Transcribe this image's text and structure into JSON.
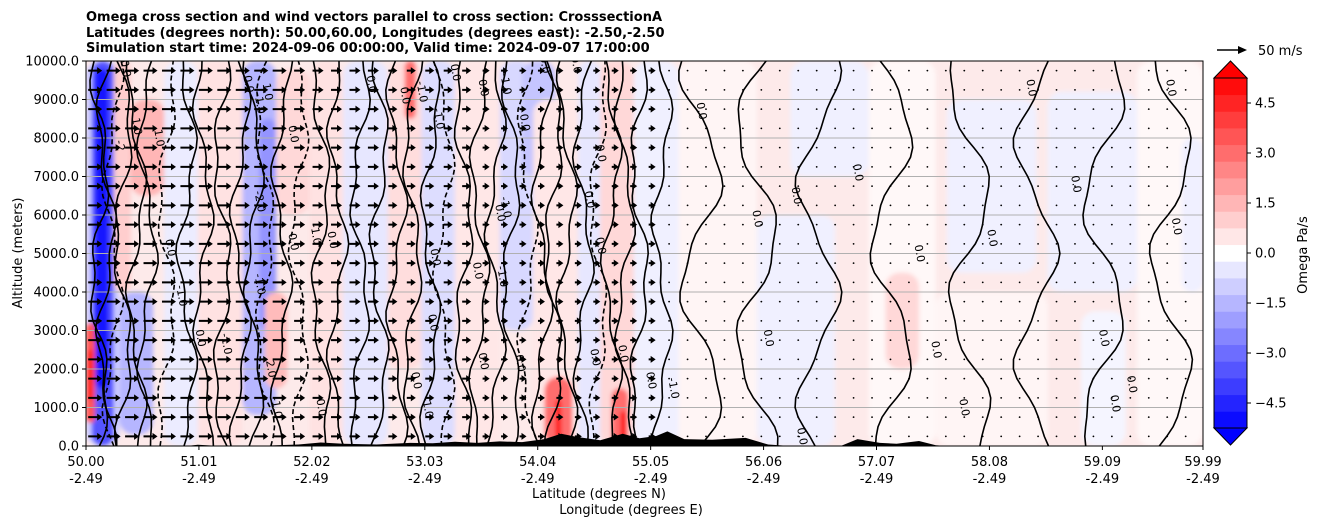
{
  "title_lines": [
    "Omega cross section and wind vectors parallel to cross section: CrosssectionA",
    "Latitudes (degrees north): 50.00,60.00, Longitudes (degrees east): -2.50,-2.50",
    "Simulation start time: 2024-09-06 00:00:00, Valid time: 2024-09-07 17:00:00"
  ],
  "quiver_key_label": "50 m/s",
  "colorbar_label": "Omega Pa/s",
  "colorbar_ticks": [
    "4.5",
    "3.0",
    "1.5",
    "0.0",
    "−1.5",
    "−3.0",
    "−4.5"
  ],
  "colors": {
    "positive": "#ff0000",
    "negative": "#0000ff",
    "terrain": "#000000",
    "grid": "#b0b0b0"
  },
  "chart_data": {
    "type": "contourf",
    "ylabel": "Altitude (meters)",
    "xlabel_lat": "Latitude (degrees N)",
    "xlabel_lon": "Longitude (degrees E)",
    "ylim": [
      0,
      10000
    ],
    "xlim": [
      50.0,
      59.99
    ],
    "y_ticks": [
      0,
      1000,
      2000,
      3000,
      4000,
      5000,
      6000,
      7000,
      8000,
      9000,
      10000
    ],
    "y_tick_labels": [
      "0.0",
      "1000.0",
      "2000.0",
      "3000.0",
      "4000.0",
      "5000.0",
      "6000.0",
      "7000.0",
      "8000.0",
      "9000.0",
      "10000.0"
    ],
    "x_ticks": [
      50.0,
      51.01,
      52.02,
      53.03,
      54.04,
      55.05,
      56.06,
      57.07,
      58.08,
      59.09,
      59.99
    ],
    "x_tick_lat_labels": [
      "50.00",
      "51.01",
      "52.02",
      "53.03",
      "54.04",
      "55.05",
      "56.06",
      "57.07",
      "58.08",
      "59.09",
      "59.99"
    ],
    "x_tick_lon_labels": [
      "-2.49",
      "-2.49",
      "-2.49",
      "-2.49",
      "-2.49",
      "-2.49",
      "-2.49",
      "-2.49",
      "-2.49",
      "-2.49",
      "-2.49"
    ],
    "grid": "horizontal",
    "colorbar": {
      "vmin": -5.25,
      "vmax": 5.25,
      "step": 0.5
    },
    "contour_labels": [
      {
        "lat": 50.35,
        "alt": 9800,
        "text": "0.0"
      },
      {
        "lat": 50.45,
        "alt": 8300,
        "text": "1.0"
      },
      {
        "lat": 50.3,
        "alt": 7800,
        "text": "-2"
      },
      {
        "lat": 50.65,
        "alt": 8000,
        "text": "1.0"
      },
      {
        "lat": 50.75,
        "alt": 5150,
        "text": "0.0"
      },
      {
        "lat": 50.85,
        "alt": 3900,
        "text": "-1.0"
      },
      {
        "lat": 51.02,
        "alt": 2800,
        "text": "0.0"
      },
      {
        "lat": 51.25,
        "alt": 2650,
        "text": "-1.0"
      },
      {
        "lat": 51.45,
        "alt": 9400,
        "text": "0.0"
      },
      {
        "lat": 51.62,
        "alt": 9200,
        "text": "1.0"
      },
      {
        "lat": 51.55,
        "alt": 8900,
        "text": "-1.0"
      },
      {
        "lat": 51.85,
        "alt": 8100,
        "text": "0.0"
      },
      {
        "lat": 51.55,
        "alt": 6350,
        "text": "-2.0"
      },
      {
        "lat": 51.85,
        "alt": 5300,
        "text": "0.0"
      },
      {
        "lat": 51.55,
        "alt": 4200,
        "text": "-1.0"
      },
      {
        "lat": 51.65,
        "alt": 2000,
        "text": "2.0"
      },
      {
        "lat": 51.7,
        "alt": 1000,
        "text": "-1.0"
      },
      {
        "lat": 52.05,
        "alt": 5500,
        "text": "-1.0"
      },
      {
        "lat": 52.2,
        "alt": 5350,
        "text": "0.0"
      },
      {
        "lat": 52.1,
        "alt": 1000,
        "text": "0.0"
      },
      {
        "lat": 52.55,
        "alt": 9400,
        "text": "0.0"
      },
      {
        "lat": 52.85,
        "alt": 9100,
        "text": "0.0"
      },
      {
        "lat": 53.0,
        "alt": 9200,
        "text": "-1.0"
      },
      {
        "lat": 53.15,
        "alt": 8500,
        "text": "-1.0"
      },
      {
        "lat": 53.1,
        "alt": 3200,
        "text": "0.0"
      },
      {
        "lat": 53.12,
        "alt": 4900,
        "text": "0.0"
      },
      {
        "lat": 52.95,
        "alt": 1700,
        "text": "0.0"
      },
      {
        "lat": 53.05,
        "alt": 1000,
        "text": "-1.0"
      },
      {
        "lat": 53.3,
        "alt": 9700,
        "text": "0.0"
      },
      {
        "lat": 53.55,
        "alt": 9300,
        "text": "0.0"
      },
      {
        "lat": 53.75,
        "alt": 9400,
        "text": "-1.0"
      },
      {
        "lat": 53.92,
        "alt": 8400,
        "text": "0.0"
      },
      {
        "lat": 53.75,
        "alt": 6200,
        "text": "-1.0"
      },
      {
        "lat": 53.7,
        "alt": 6050,
        "text": "0.0"
      },
      {
        "lat": 53.5,
        "alt": 4550,
        "text": "0.0"
      },
      {
        "lat": 53.72,
        "alt": 4400,
        "text": "-1.0"
      },
      {
        "lat": 53.55,
        "alt": 2200,
        "text": "0.0"
      },
      {
        "lat": 53.88,
        "alt": 2150,
        "text": "0.0"
      },
      {
        "lat": 54.1,
        "alt": 9900,
        "text": "0.0"
      },
      {
        "lat": 54.38,
        "alt": 9900,
        "text": "0.0"
      },
      {
        "lat": 54.6,
        "alt": 7600,
        "text": "0.0"
      },
      {
        "lat": 54.5,
        "alt": 6400,
        "text": "0.0"
      },
      {
        "lat": 54.6,
        "alt": 5200,
        "text": "0.0"
      },
      {
        "lat": 54.55,
        "alt": 2300,
        "text": "0.0"
      },
      {
        "lat": 54.8,
        "alt": 2400,
        "text": "0.0"
      },
      {
        "lat": 55.05,
        "alt": 1700,
        "text": "0.0"
      },
      {
        "lat": 55.25,
        "alt": 1500,
        "text": "-1.0"
      },
      {
        "lat": 55.5,
        "alt": 8700,
        "text": "0.0"
      },
      {
        "lat": 56.35,
        "alt": 6500,
        "text": "0.0"
      },
      {
        "lat": 56.0,
        "alt": 5900,
        "text": "0.0"
      },
      {
        "lat": 56.1,
        "alt": 2800,
        "text": "0.0"
      },
      {
        "lat": 56.4,
        "alt": 250,
        "text": "0.0"
      },
      {
        "lat": 56.9,
        "alt": 7100,
        "text": "0.0"
      },
      {
        "lat": 57.45,
        "alt": 5000,
        "text": "0.0"
      },
      {
        "lat": 57.6,
        "alt": 2500,
        "text": "0.0"
      },
      {
        "lat": 57.85,
        "alt": 1000,
        "text": "0.0"
      },
      {
        "lat": 58.1,
        "alt": 5400,
        "text": "0.0"
      },
      {
        "lat": 58.45,
        "alt": 9300,
        "text": "0.0"
      },
      {
        "lat": 58.85,
        "alt": 6800,
        "text": "0.0"
      },
      {
        "lat": 59.1,
        "alt": 2800,
        "text": "0.0"
      },
      {
        "lat": 59.35,
        "alt": 1600,
        "text": "0.0"
      },
      {
        "lat": 59.2,
        "alt": 1100,
        "text": "0.0"
      },
      {
        "lat": 59.7,
        "alt": 9300,
        "text": "0.0"
      },
      {
        "lat": 59.75,
        "alt": 5700,
        "text": "0.0"
      }
    ]
  }
}
